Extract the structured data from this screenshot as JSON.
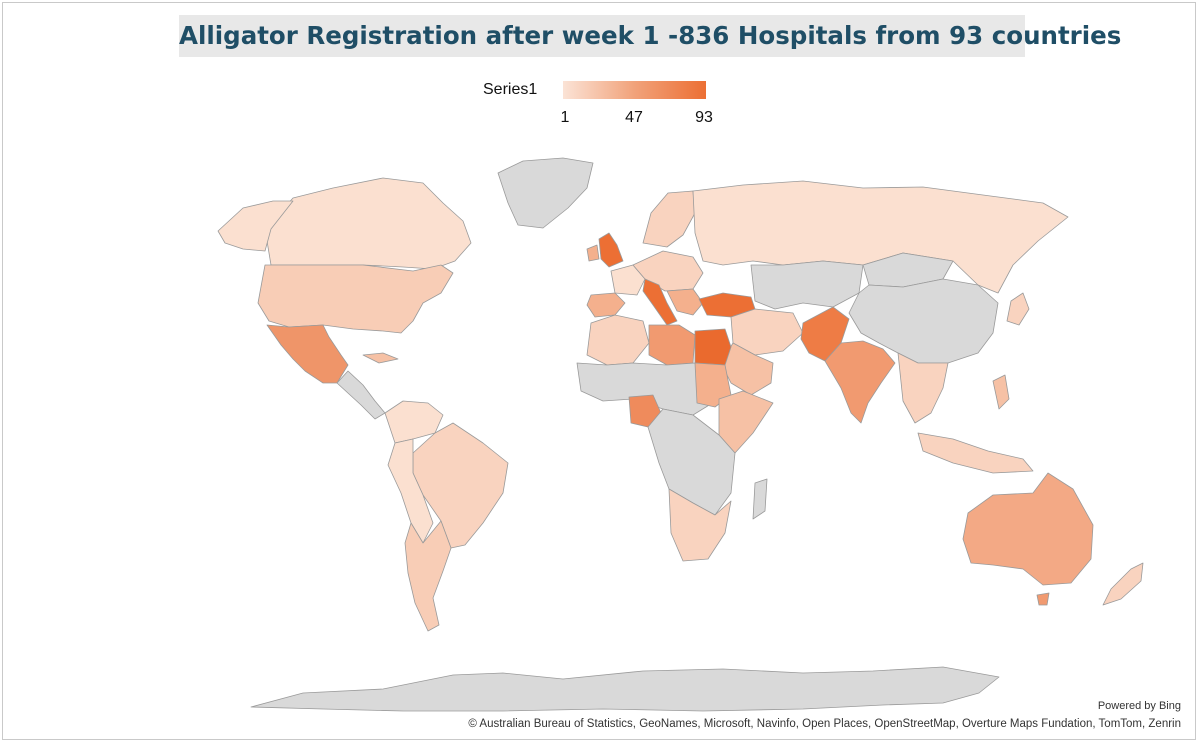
{
  "title": "Alligator Registration after week 1 -836 Hospitals from 93 countries",
  "legend": {
    "series_name": "Series1",
    "min_label": "1",
    "mid_label": "47",
    "max_label": "93",
    "color_low": "#fbe3d6",
    "color_mid": "#f1a27a",
    "color_high": "#ec6f34"
  },
  "no_data_color": "#d9d9d9",
  "map_data": {
    "type": "choropleth-world",
    "value_min": 1,
    "value_max": 93,
    "regions": [
      {
        "name": "Canada",
        "level": 0.12
      },
      {
        "name": "United States",
        "level": 0.18
      },
      {
        "name": "Mexico",
        "level": 0.55
      },
      {
        "name": "Brazil",
        "level": 0.12
      },
      {
        "name": "Argentina",
        "level": 0.15
      },
      {
        "name": "United Kingdom",
        "level": 0.95
      },
      {
        "name": "Italy",
        "level": 0.9
      },
      {
        "name": "Turkey",
        "level": 0.95
      },
      {
        "name": "Egypt",
        "level": 0.98
      },
      {
        "name": "Pakistan",
        "level": 0.72
      },
      {
        "name": "India",
        "level": 0.55
      },
      {
        "name": "Nigeria",
        "level": 0.65
      },
      {
        "name": "Russia",
        "level": 0.1
      },
      {
        "name": "Australia",
        "level": 0.45
      },
      {
        "name": "Greenland",
        "level": null
      },
      {
        "name": "China",
        "level": null
      },
      {
        "name": "Antarctica",
        "level": null
      }
    ]
  },
  "attribution": {
    "powered_by": "Powered by Bing",
    "credits": "© Australian Bureau of Statistics, GeoNames, Microsoft, Navinfo, Open Places, OpenStreetMap, Overture Maps Fundation, TomTom, Zenrin"
  }
}
